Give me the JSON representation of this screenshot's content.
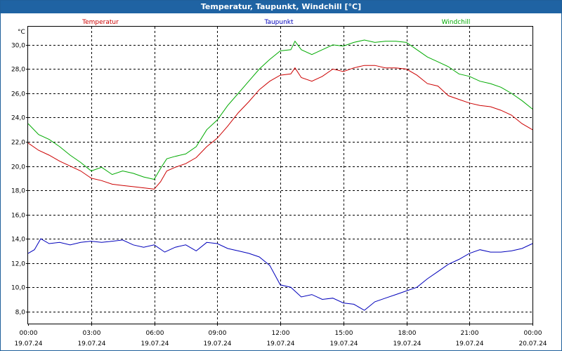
{
  "window": {
    "title": "Temperatur, Taupunkt, Windchill [°C]"
  },
  "chart_data": {
    "type": "line",
    "title": "Temperatur, Taupunkt, Windchill [°C]",
    "ylabel": "°C",
    "xlabel": "",
    "ylim": [
      7,
      31.5
    ],
    "xlim_hours": [
      0,
      24
    ],
    "grid": true,
    "legend_placement": "top",
    "yticks": [
      "8,0",
      "10,0",
      "12,0",
      "14,0",
      "16,0",
      "18,0",
      "20,0",
      "22,0",
      "24,0",
      "26,0",
      "28,0",
      "30,0"
    ],
    "x_ticks": [
      {
        "time": "00:00",
        "date": "19.07.24"
      },
      {
        "time": "03:00",
        "date": "19.07.24"
      },
      {
        "time": "06:00",
        "date": "19.07.24"
      },
      {
        "time": "09:00",
        "date": "19.07.24"
      },
      {
        "time": "12:00",
        "date": "19.07.24"
      },
      {
        "time": "15:00",
        "date": "19.07.24"
      },
      {
        "time": "18:00",
        "date": "19.07.24"
      },
      {
        "time": "21:00",
        "date": "19.07.24"
      },
      {
        "time": "00:00",
        "date": "20.07.24"
      }
    ],
    "series": [
      {
        "name": "Temperatur",
        "color": "#cc0000",
        "points": [
          [
            0,
            21.9
          ],
          [
            0.5,
            21.3
          ],
          [
            1,
            20.9
          ],
          [
            1.5,
            20.4
          ],
          [
            2,
            20.0
          ],
          [
            2.5,
            19.6
          ],
          [
            3,
            19.0
          ],
          [
            3.5,
            18.8
          ],
          [
            4,
            18.5
          ],
          [
            4.5,
            18.4
          ],
          [
            5,
            18.3
          ],
          [
            5.5,
            18.2
          ],
          [
            6,
            18.1
          ],
          [
            6.3,
            18.7
          ],
          [
            6.6,
            19.6
          ],
          [
            7,
            19.9
          ],
          [
            7.5,
            20.2
          ],
          [
            8,
            20.7
          ],
          [
            8.5,
            21.6
          ],
          [
            9,
            22.3
          ],
          [
            9.5,
            23.3
          ],
          [
            10,
            24.4
          ],
          [
            10.5,
            25.3
          ],
          [
            11,
            26.3
          ],
          [
            11.5,
            27.0
          ],
          [
            12,
            27.5
          ],
          [
            12.5,
            27.6
          ],
          [
            12.7,
            28.1
          ],
          [
            13,
            27.3
          ],
          [
            13.5,
            27.0
          ],
          [
            14,
            27.4
          ],
          [
            14.5,
            28.0
          ],
          [
            15,
            27.8
          ],
          [
            15.5,
            28.1
          ],
          [
            16,
            28.3
          ],
          [
            16.5,
            28.3
          ],
          [
            17,
            28.1
          ],
          [
            17.5,
            28.1
          ],
          [
            18,
            28.0
          ],
          [
            18.5,
            27.5
          ],
          [
            19,
            26.8
          ],
          [
            19.5,
            26.6
          ],
          [
            20,
            25.8
          ],
          [
            20.5,
            25.5
          ],
          [
            21,
            25.2
          ],
          [
            21.5,
            25.0
          ],
          [
            22,
            24.9
          ],
          [
            22.5,
            24.6
          ],
          [
            23,
            24.2
          ],
          [
            23.5,
            23.5
          ],
          [
            24,
            23.0
          ]
        ]
      },
      {
        "name": "Taupunkt",
        "color": "#0000bb",
        "points": [
          [
            0,
            12.8
          ],
          [
            0.3,
            13.1
          ],
          [
            0.6,
            14.0
          ],
          [
            1,
            13.6
          ],
          [
            1.5,
            13.7
          ],
          [
            2,
            13.5
          ],
          [
            2.5,
            13.7
          ],
          [
            3,
            13.8
          ],
          [
            3.5,
            13.7
          ],
          [
            4,
            13.8
          ],
          [
            4.5,
            13.9
          ],
          [
            5,
            13.5
          ],
          [
            5.5,
            13.3
          ],
          [
            6,
            13.5
          ],
          [
            6.5,
            12.9
          ],
          [
            7,
            13.3
          ],
          [
            7.5,
            13.5
          ],
          [
            8,
            13.0
          ],
          [
            8.5,
            13.7
          ],
          [
            9,
            13.6
          ],
          [
            9.5,
            13.2
          ],
          [
            10,
            13.0
          ],
          [
            10.5,
            12.8
          ],
          [
            11,
            12.5
          ],
          [
            11.5,
            11.8
          ],
          [
            12,
            10.2
          ],
          [
            12.5,
            10.0
          ],
          [
            13,
            9.2
          ],
          [
            13.5,
            9.4
          ],
          [
            14,
            9.0
          ],
          [
            14.5,
            9.1
          ],
          [
            15,
            8.7
          ],
          [
            15.5,
            8.6
          ],
          [
            16,
            8.1
          ],
          [
            16.5,
            8.8
          ],
          [
            17,
            9.1
          ],
          [
            17.5,
            9.4
          ],
          [
            18,
            9.7
          ],
          [
            18.5,
            10.0
          ],
          [
            19,
            10.7
          ],
          [
            19.5,
            11.3
          ],
          [
            20,
            11.9
          ],
          [
            20.5,
            12.3
          ],
          [
            21,
            12.8
          ],
          [
            21.5,
            13.1
          ],
          [
            22,
            12.9
          ],
          [
            22.5,
            12.9
          ],
          [
            23,
            13.0
          ],
          [
            23.5,
            13.2
          ],
          [
            24,
            13.6
          ]
        ]
      },
      {
        "name": "Windchill",
        "color": "#00aa00",
        "points": [
          [
            0,
            23.5
          ],
          [
            0.5,
            22.6
          ],
          [
            1,
            22.2
          ],
          [
            1.5,
            21.6
          ],
          [
            2,
            20.9
          ],
          [
            2.5,
            20.3
          ],
          [
            3,
            19.6
          ],
          [
            3.5,
            19.9
          ],
          [
            4,
            19.3
          ],
          [
            4.5,
            19.6
          ],
          [
            5,
            19.4
          ],
          [
            5.5,
            19.1
          ],
          [
            6,
            18.9
          ],
          [
            6.3,
            19.8
          ],
          [
            6.6,
            20.6
          ],
          [
            7,
            20.8
          ],
          [
            7.5,
            21.0
          ],
          [
            8,
            21.6
          ],
          [
            8.5,
            23.0
          ],
          [
            9,
            23.8
          ],
          [
            9.5,
            25.0
          ],
          [
            10,
            26.0
          ],
          [
            10.5,
            27.0
          ],
          [
            11,
            28.0
          ],
          [
            11.5,
            28.8
          ],
          [
            12,
            29.5
          ],
          [
            12.5,
            29.6
          ],
          [
            12.7,
            30.3
          ],
          [
            13,
            29.6
          ],
          [
            13.5,
            29.2
          ],
          [
            14,
            29.6
          ],
          [
            14.5,
            30.0
          ],
          [
            15,
            29.9
          ],
          [
            15.5,
            30.2
          ],
          [
            16,
            30.4
          ],
          [
            16.5,
            30.2
          ],
          [
            17,
            30.3
          ],
          [
            17.5,
            30.3
          ],
          [
            18,
            30.2
          ],
          [
            18.5,
            29.6
          ],
          [
            19,
            29.0
          ],
          [
            19.5,
            28.6
          ],
          [
            20,
            28.2
          ],
          [
            20.5,
            27.6
          ],
          [
            21,
            27.4
          ],
          [
            21.5,
            27.0
          ],
          [
            22,
            26.8
          ],
          [
            22.5,
            26.5
          ],
          [
            23,
            26.0
          ],
          [
            23.5,
            25.4
          ],
          [
            24,
            24.7
          ]
        ]
      }
    ]
  }
}
